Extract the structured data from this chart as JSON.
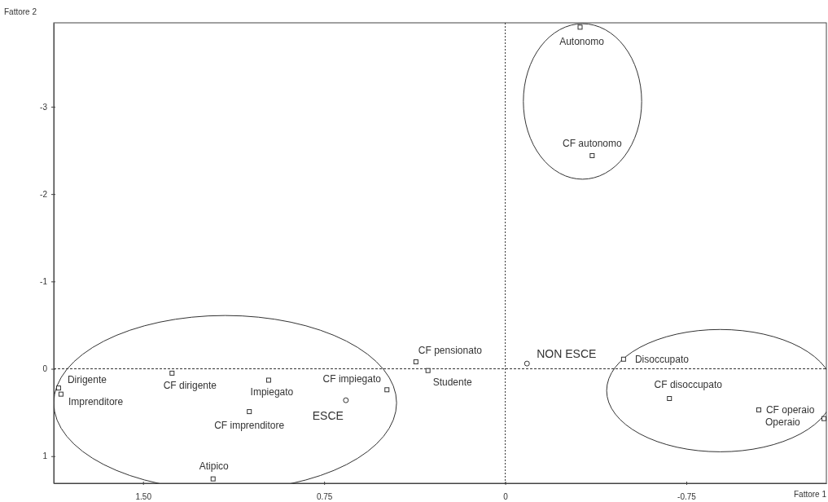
{
  "chart_data": {
    "type": "scatter",
    "xlabel": "Fattore 1",
    "ylabel": "Fattore 2",
    "xlim": [
      1.87,
      -1.33
    ],
    "ylim": [
      1.31,
      -3.96
    ],
    "xticks": [
      {
        "value": 1.5,
        "label": "1.50"
      },
      {
        "value": 0.75,
        "label": "0.75"
      },
      0,
      {
        "value": -0.75,
        "label": "-0.75"
      }
    ],
    "yticks": [
      -3,
      -2,
      -1,
      0,
      1
    ],
    "grid": false,
    "ref_lines": [
      {
        "axis": "x",
        "value": 0,
        "color": "#333333",
        "line_style": "dotted"
      },
      {
        "axis": "y",
        "value": 0,
        "color": "#333333",
        "line_style": "dashed"
      }
    ],
    "series": [
      {
        "color": "#333333",
        "marker": "square",
        "x": [
          -0.31,
          -0.36,
          0.37,
          0.32,
          -0.49,
          -0.68,
          -1.05,
          -1.32,
          1.85,
          1.84,
          1.38,
          0.98,
          1.06,
          0.49,
          1.21
        ],
        "values": [
          -3.91,
          -2.44,
          -0.08,
          0.02,
          -0.11,
          0.34,
          0.47,
          0.57,
          0.22,
          0.29,
          0.05,
          0.13,
          0.49,
          0.24,
          1.26
        ]
      },
      {
        "color": "#333333",
        "marker": "circle",
        "x": [
          -0.09,
          0.66
        ],
        "values": [
          -0.06,
          0.36
        ]
      }
    ],
    "annotations": [
      {
        "text": "Autonomo",
        "x": -0.31,
        "y": -3.91
      },
      {
        "text": "CF autonomo",
        "x": -0.36,
        "y": -2.44
      },
      {
        "text": "CF pensionato",
        "x": 0.37,
        "y": -0.08
      },
      {
        "text": "Studente",
        "x": 0.32,
        "y": 0.02
      },
      {
        "text": "Disoccupato",
        "x": -0.49,
        "y": -0.11
      },
      {
        "text": "CF disoccupato",
        "x": -0.68,
        "y": 0.34
      },
      {
        "text": "CF operaio",
        "x": -1.05,
        "y": 0.47
      },
      {
        "text": "Operaio",
        "x": -1.32,
        "y": 0.57
      },
      {
        "text": "Dirigente",
        "x": 1.85,
        "y": 0.22
      },
      {
        "text": "Imprenditore",
        "x": 1.84,
        "y": 0.29
      },
      {
        "text": "CF dirigente",
        "x": 1.38,
        "y": 0.05
      },
      {
        "text": "Impiegato",
        "x": 0.98,
        "y": 0.13
      },
      {
        "text": "CF imprenditore",
        "x": 1.06,
        "y": 0.49
      },
      {
        "text": "CF impiegato",
        "x": 0.49,
        "y": 0.24
      },
      {
        "text": "Atipico",
        "x": 1.21,
        "y": 1.26
      },
      {
        "text": "NON ESCE",
        "x": -0.09,
        "y": -0.06
      },
      {
        "text": "ESCE",
        "x": 0.66,
        "y": 0.36
      }
    ]
  }
}
